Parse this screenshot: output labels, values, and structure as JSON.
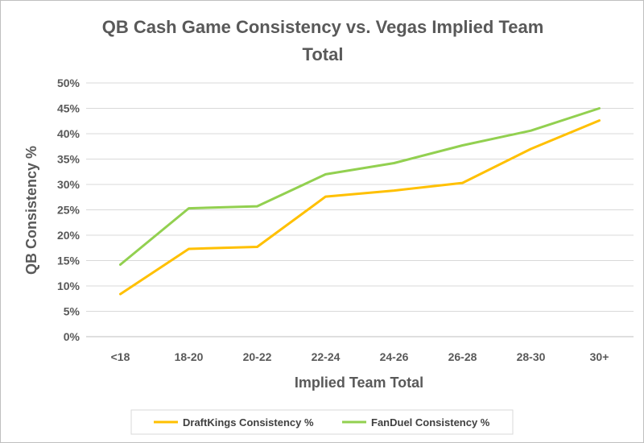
{
  "chart_data": {
    "type": "line",
    "title_lines": [
      "QB Cash Game Consistency vs. Vegas Implied Team",
      "Total"
    ],
    "xlabel": "Implied Team Total",
    "ylabel": "QB Consistency %",
    "categories": [
      "<18",
      "18-20",
      "20-22",
      "22-24",
      "24-26",
      "26-28",
      "28-30",
      "30+"
    ],
    "ylim": [
      0,
      50
    ],
    "yticks": [
      0,
      5,
      10,
      15,
      20,
      25,
      30,
      35,
      40,
      45,
      50
    ],
    "ytick_labels": [
      "0%",
      "5%",
      "10%",
      "15%",
      "20%",
      "25%",
      "30%",
      "35%",
      "40%",
      "45%",
      "50%"
    ],
    "grid": true,
    "legend_position": "bottom",
    "series": [
      {
        "name": "DraftKings Consistency %",
        "color": "#ffc000",
        "values": [
          8.4,
          17.3,
          17.7,
          27.6,
          28.8,
          30.3,
          37.0,
          42.6
        ]
      },
      {
        "name": "FanDuel Consistency %",
        "color": "#92d050",
        "values": [
          14.2,
          25.3,
          25.7,
          32.0,
          34.2,
          37.7,
          40.6,
          45.0
        ]
      }
    ]
  }
}
